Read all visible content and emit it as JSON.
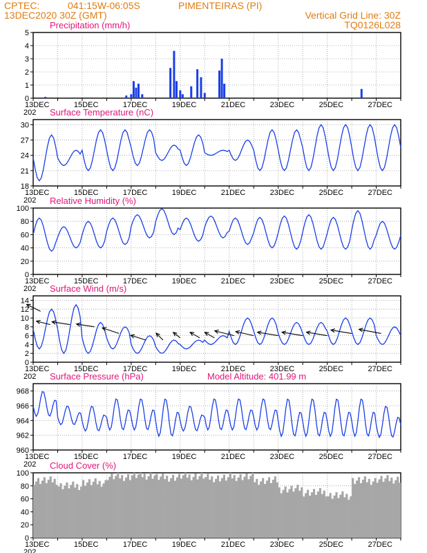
{
  "header": {
    "source": "CPTEC:",
    "coords": "041:15W-06:05S",
    "location": "PIMENTEIRAS (PI)",
    "run": "13DEC2020 30Z (GMT)",
    "grid_note": "Vertical Grid Line: 30Z",
    "model_code": "TQ0126L028"
  },
  "colors": {
    "header": "#e07b10",
    "panel_title": "#e0167a",
    "series": "#1a3ee6",
    "cloud": "#a6a6a6",
    "wind_arrow": "#000000"
  },
  "x_axis": {
    "date_labels": [
      "13DEC",
      "15DEC",
      "17DEC",
      "19DEC",
      "21DEC",
      "23DEC",
      "25DEC",
      "27DEC"
    ],
    "year_fragment": "202"
  },
  "chart_data": [
    {
      "type": "bar",
      "title": "Precipitation (mm/h)",
      "ylim": [
        0,
        5
      ],
      "yticks": [
        0,
        1,
        2,
        3,
        4,
        5
      ],
      "series": [
        {
          "name": "Precipitation",
          "values_by_day": [
            [
              0.5,
              0.1
            ],
            [
              3.8,
              0.2
            ],
            [
              4.0,
              0.3
            ],
            [
              4.1,
              1.3
            ],
            [
              4.2,
              0.8
            ],
            [
              4.3,
              1.1
            ],
            [
              4.45,
              0.3
            ],
            [
              5.6,
              2.3
            ],
            [
              5.75,
              3.6
            ],
            [
              5.85,
              1.3
            ],
            [
              6.0,
              0.6
            ],
            [
              6.1,
              0.3
            ],
            [
              6.45,
              0.9
            ],
            [
              6.7,
              2.2
            ],
            [
              6.85,
              1.6
            ],
            [
              7.0,
              0.4
            ],
            [
              7.6,
              2.1
            ],
            [
              7.7,
              3.0
            ],
            [
              7.8,
              1.1
            ],
            [
              13.4,
              0.7
            ]
          ]
        }
      ]
    },
    {
      "type": "line",
      "title": "Surface Temperature (nC)",
      "ylim": [
        18,
        31
      ],
      "yticks": [
        18,
        21,
        24,
        27,
        30
      ],
      "series": [
        {
          "name": "Temperature",
          "daily_max": [
            28,
            25,
            29,
            29,
            29,
            26,
            28,
            25,
            27,
            29,
            29,
            30,
            30,
            30,
            30
          ],
          "daily_min": [
            19,
            22,
            21,
            21,
            22,
            23,
            22,
            24,
            23,
            21,
            21,
            21,
            21,
            21,
            21
          ]
        }
      ]
    },
    {
      "type": "line",
      "title": "Relative Humidity (%)",
      "ylim": [
        0,
        100
      ],
      "yticks": [
        0,
        20,
        40,
        60,
        80,
        100
      ],
      "series": [
        {
          "name": "Humidity",
          "daily_max": [
            85,
            72,
            80,
            85,
            90,
            99,
            85,
            88,
            85,
            86,
            88,
            90,
            86,
            96,
            80
          ],
          "daily_min": [
            35,
            40,
            40,
            45,
            55,
            60,
            50,
            55,
            45,
            40,
            38,
            38,
            38,
            38,
            38
          ]
        }
      ]
    },
    {
      "type": "line",
      "title": "Surface Wind (m/s)",
      "ylim": [
        0,
        15
      ],
      "yticks": [
        0,
        2,
        4,
        6,
        8,
        10,
        12,
        14
      ],
      "series": [
        {
          "name": "Wind speed",
          "daily_max": [
            12,
            13,
            9,
            8,
            6,
            5,
            5,
            6,
            10,
            10,
            9,
            9,
            10,
            10,
            8
          ],
          "daily_min": [
            3,
            2,
            2,
            3,
            2,
            2,
            3,
            4,
            4,
            4,
            4,
            4,
            4,
            4,
            4
          ]
        }
      ]
    },
    {
      "type": "line",
      "title": "Surface Pressure (hPa)",
      "annotation": "Model Altitude: 401.99 m",
      "ylim": [
        960,
        969
      ],
      "yticks": [
        960,
        962,
        964,
        966,
        968
      ],
      "series": [
        {
          "name": "Pressure",
          "daily_max": [
            968,
            966,
            966,
            967,
            967,
            967,
            966,
            967,
            967,
            967,
            967,
            967,
            967,
            967,
            966
          ],
          "daily_min": [
            964,
            963,
            962,
            962,
            962,
            961,
            962,
            962,
            962,
            962,
            961,
            961,
            961,
            961,
            961
          ]
        }
      ]
    },
    {
      "type": "bar",
      "title": "Cloud Cover (%)",
      "ylim": [
        0,
        100
      ],
      "yticks": [
        0,
        20,
        40,
        60,
        80,
        100
      ],
      "series": [
        {
          "name": "Cloud cover",
          "daily_values": [
            88,
            80,
            85,
            94,
            96,
            93,
            95,
            92,
            94,
            88,
            75,
            70,
            65,
            88,
            90
          ]
        }
      ]
    }
  ]
}
